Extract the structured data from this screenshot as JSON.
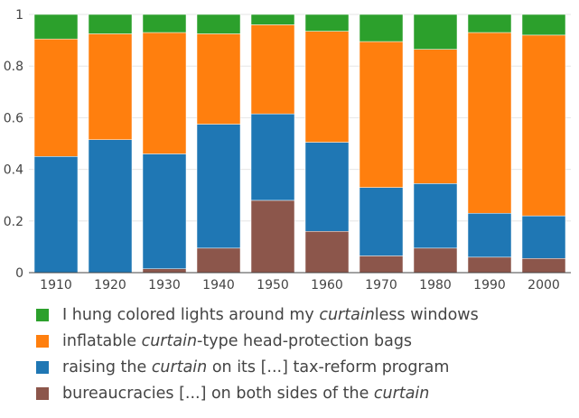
{
  "chart_data": {
    "type": "bar",
    "stacked": true,
    "categories": [
      "1910",
      "1920",
      "1930",
      "1940",
      "1950",
      "1960",
      "1970",
      "1980",
      "1990",
      "2000"
    ],
    "ylim": [
      0,
      1
    ],
    "yticks": [
      0,
      0.2,
      0.4,
      0.6,
      0.8,
      1
    ],
    "ytick_labels": [
      "0",
      "0.2",
      "0.4",
      "0.6",
      "0.8",
      "1"
    ],
    "grid": true,
    "legend_position": "bottom",
    "series": [
      {
        "key": "bureaucracies",
        "color": "#8c564b",
        "legend_parts": [
          {
            "text": "bureaucracies [...] on both sides of the ",
            "italic": false
          },
          {
            "text": "curtain",
            "italic": true
          }
        ],
        "values": [
          0,
          0,
          0.015,
          0.095,
          0.28,
          0.16,
          0.065,
          0.095,
          0.06,
          0.055
        ]
      },
      {
        "key": "raising",
        "color": "#1f77b4",
        "legend_parts": [
          {
            "text": "raising the ",
            "italic": false
          },
          {
            "text": "curtain",
            "italic": true
          },
          {
            "text": " on its [...] tax-reform program",
            "italic": false
          }
        ],
        "values": [
          0.45,
          0.515,
          0.445,
          0.48,
          0.335,
          0.345,
          0.265,
          0.25,
          0.17,
          0.165
        ]
      },
      {
        "key": "inflatable",
        "color": "#ff7f0e",
        "legend_parts": [
          {
            "text": "inflatable ",
            "italic": false
          },
          {
            "text": "curtain",
            "italic": true
          },
          {
            "text": "-type head-protection bags",
            "italic": false
          }
        ],
        "values": [
          0.455,
          0.41,
          0.47,
          0.35,
          0.345,
          0.43,
          0.565,
          0.52,
          0.7,
          0.7
        ]
      },
      {
        "key": "lights",
        "color": "#2ca02c",
        "legend_parts": [
          {
            "text": "I hung colored lights around my ",
            "italic": false
          },
          {
            "text": "curtain",
            "italic": true
          },
          {
            "text": "less windows",
            "italic": false
          }
        ],
        "values": [
          0.095,
          0.075,
          0.07,
          0.075,
          0.04,
          0.065,
          0.105,
          0.135,
          0.07,
          0.08
        ]
      }
    ]
  }
}
